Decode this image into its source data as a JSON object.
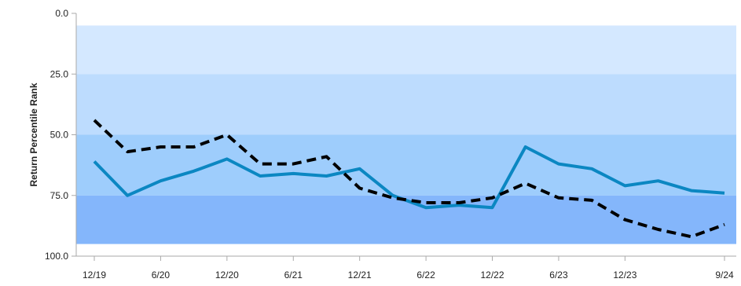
{
  "chart_data": {
    "type": "line",
    "ylabel": "Return Percentile Rank",
    "xlabel": "",
    "ylim": [
      0,
      100
    ],
    "y_inverted": true,
    "y_ticks": [
      "0.0",
      "25.0",
      "50.0",
      "75.0",
      "100.0"
    ],
    "x_ticks": [
      "12/19",
      "6/20",
      "12/20",
      "6/21",
      "12/21",
      "6/22",
      "12/22",
      "6/23",
      "12/23",
      "9/24"
    ],
    "x_tick_positions": [
      0,
      2,
      4,
      6,
      8,
      10,
      12,
      14,
      16,
      19
    ],
    "quartile_bands": [
      {
        "from": 5,
        "to": 25,
        "color": "#d4e8ff"
      },
      {
        "from": 25,
        "to": 50,
        "color": "#bddcfe"
      },
      {
        "from": 50,
        "to": 75,
        "color": "#9ecdfc"
      },
      {
        "from": 75,
        "to": 95,
        "color": "#84b6fb"
      }
    ],
    "x": [
      0,
      1,
      2,
      3,
      4,
      5,
      6,
      7,
      8,
      9,
      10,
      11,
      12,
      13,
      14,
      15,
      16,
      17,
      18,
      19
    ],
    "series": [
      {
        "color": "#0b87c2",
        "style": "solid",
        "values": [
          61,
          75,
          69,
          65,
          60,
          67,
          66,
          67,
          64,
          75,
          80,
          79,
          80,
          55,
          62,
          64,
          71,
          69,
          73,
          74
        ]
      },
      {
        "color": "#000000",
        "style": "dashed",
        "values": [
          44,
          57,
          55,
          55,
          50,
          62,
          62,
          59,
          72,
          76,
          78,
          78,
          76,
          70,
          76,
          77,
          85,
          89,
          92,
          87
        ]
      }
    ],
    "grid": false
  }
}
